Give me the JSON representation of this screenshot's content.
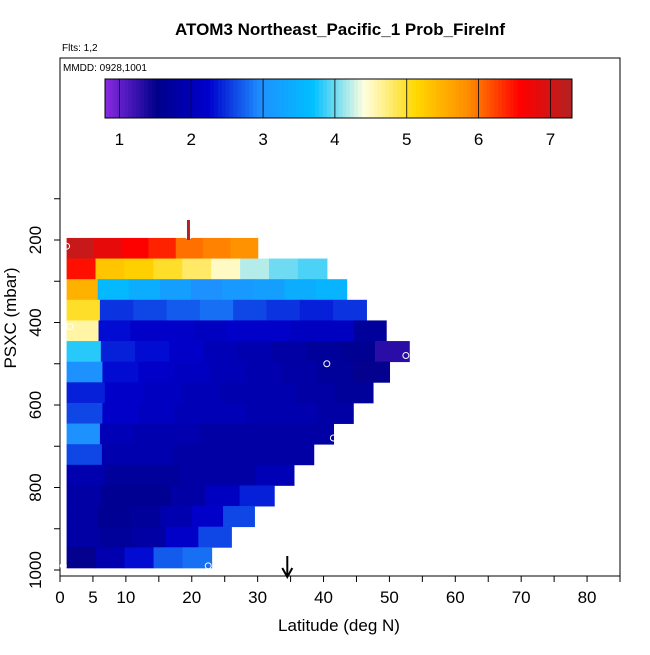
{
  "chart_data": {
    "type": "heatmap",
    "title": "ATOM3 Northeast_Pacific_1 Prob_FireInf",
    "subtitle": "Flts: 1,2",
    "annotation": "MMDD: 0928,1001",
    "xlabel": "Latitude (deg N)",
    "ylabel": "PSXC (mbar)",
    "xlim": [
      0,
      85
    ],
    "ylim": [
      1000,
      0
    ],
    "x_ticks": [
      0,
      5,
      10,
      20,
      30,
      40,
      50,
      60,
      70,
      80
    ],
    "y_ticks": [
      200,
      400,
      600,
      800,
      1000
    ],
    "colorbar": {
      "range": [
        0.8,
        7.3
      ],
      "ticks": [
        1,
        2,
        3,
        4,
        5,
        6,
        7
      ],
      "colors": [
        "#8a2be2",
        "#00008b",
        "#0000cd",
        "#1e90ff",
        "#00bfff",
        "#ffffe0",
        "#ffd700",
        "#ff8c00",
        "#ff0000",
        "#b22222"
      ]
    },
    "levels": [
      {
        "p": 220,
        "x_end": 30,
        "values": [
          7.1,
          6.8,
          6.6,
          6.4,
          6.0,
          5.9,
          5.8
        ]
      },
      {
        "p": 270,
        "x_end": 40.5,
        "values": [
          6.5,
          5.3,
          5.2,
          5.0,
          4.8,
          4.5,
          4.2,
          4.0,
          3.9
        ]
      },
      {
        "p": 320,
        "x_end": 43.5,
        "values": [
          5.5,
          3.6,
          3.4,
          3.2,
          3.0,
          3.1,
          3.2,
          3.4,
          3.5
        ]
      },
      {
        "p": 370,
        "x_end": 46.5,
        "values": [
          5.0,
          2.5,
          2.6,
          2.7,
          2.8,
          2.6,
          2.5,
          2.4,
          2.5
        ]
      },
      {
        "p": 420,
        "x_end": 49.5,
        "values": [
          4.6,
          2.3,
          2.2,
          2.2,
          2.1,
          2.2,
          2.2,
          2.1,
          2.1,
          1.7
        ]
      },
      {
        "p": 470,
        "x_end": 53,
        "values": [
          3.8,
          2.4,
          2.3,
          2.2,
          2.0,
          1.9,
          1.8,
          1.7,
          1.6,
          1.3
        ]
      },
      {
        "p": 520,
        "x_end": 50,
        "values": [
          3.0,
          2.3,
          2.2,
          2.1,
          2.0,
          1.9,
          1.8,
          1.7,
          1.5
        ]
      },
      {
        "p": 570,
        "x_end": 47.5,
        "values": [
          2.4,
          2.2,
          2.1,
          2.0,
          1.9,
          1.9,
          1.8,
          1.7
        ]
      },
      {
        "p": 620,
        "x_end": 44.5,
        "values": [
          2.6,
          2.2,
          2.1,
          2.0,
          2.0,
          1.9,
          1.9,
          1.8
        ]
      },
      {
        "p": 670,
        "x_end": 41.5,
        "values": [
          3.0,
          2.0,
          1.9,
          1.9,
          1.8,
          1.8,
          1.8,
          1.8
        ]
      },
      {
        "p": 720,
        "x_end": 38.5,
        "values": [
          2.6,
          1.9,
          1.9,
          1.8,
          1.8,
          1.8,
          1.8
        ]
      },
      {
        "p": 770,
        "x_end": 35.5,
        "values": [
          1.9,
          1.7,
          1.7,
          1.8,
          1.8,
          2.0
        ]
      },
      {
        "p": 820,
        "x_end": 32.5,
        "values": [
          1.8,
          1.6,
          1.6,
          1.8,
          2.1,
          2.4
        ]
      },
      {
        "p": 870,
        "x_end": 29.5,
        "values": [
          1.8,
          1.6,
          1.7,
          1.9,
          2.2,
          2.6
        ]
      },
      {
        "p": 920,
        "x_end": 26,
        "values": [
          1.8,
          1.7,
          1.8,
          2.2,
          2.6
        ]
      },
      {
        "p": 970,
        "x_end": 23,
        "values": [
          1.5,
          1.9,
          2.3,
          2.7,
          2.8
        ]
      }
    ],
    "markers": [
      {
        "lat": 1,
        "p": 215
      },
      {
        "lat": 19.5,
        "p": 190
      },
      {
        "lat": 1.5,
        "p": 410
      },
      {
        "lat": 40.5,
        "p": 500
      },
      {
        "lat": 52.5,
        "p": 480
      },
      {
        "lat": 41.5,
        "p": 680
      },
      {
        "lat": 0.5,
        "p": 990
      },
      {
        "lat": 22.5,
        "p": 990
      }
    ],
    "lat_indicator": 34.5,
    "p_indicator_lat": 19.5
  }
}
